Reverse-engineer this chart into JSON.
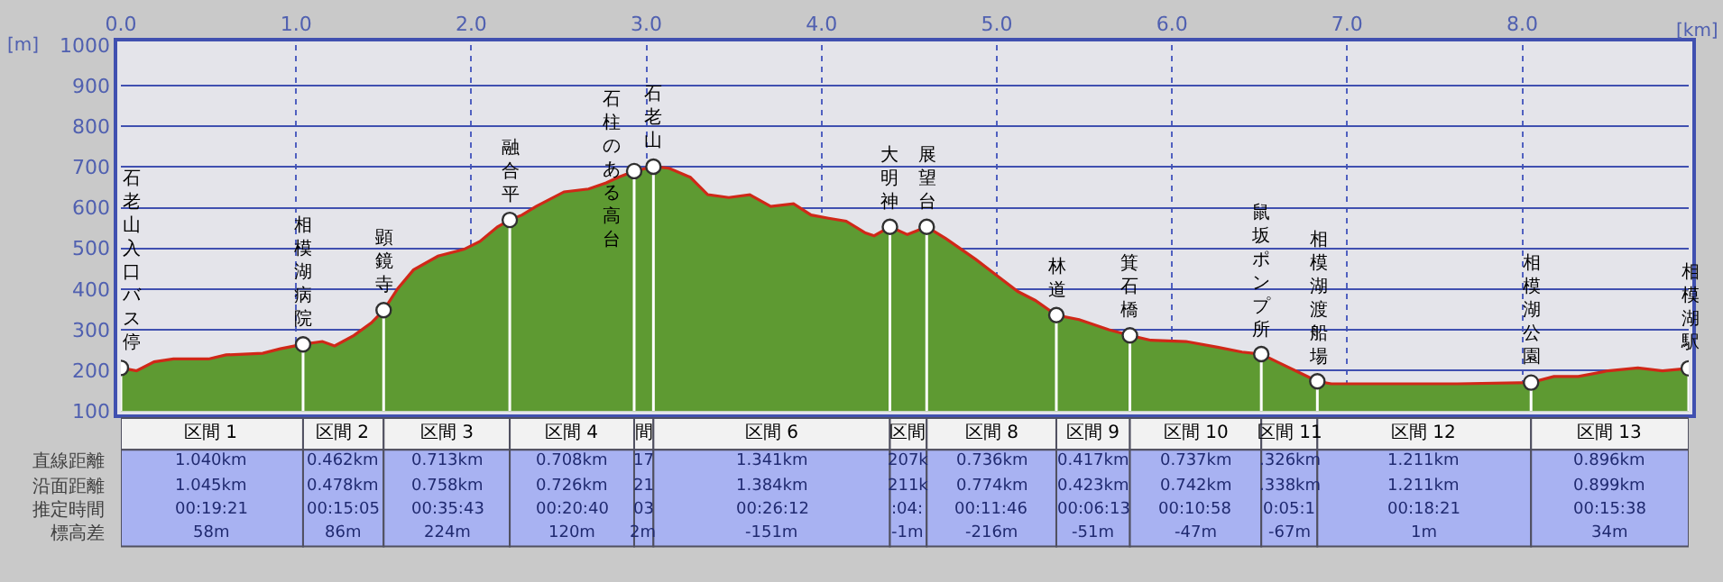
{
  "chart_data": {
    "type": "area",
    "xlabel": "[km]",
    "ylabel": "[m]",
    "xlim": [
      0,
      8.95
    ],
    "ylim": [
      100,
      1000
    ],
    "xticks": [
      {
        "value": 0,
        "label": "0.0"
      },
      {
        "value": 1,
        "label": "1.0"
      },
      {
        "value": 2,
        "label": "2.0"
      },
      {
        "value": 3,
        "label": "3.0"
      },
      {
        "value": 4,
        "label": "4.0"
      },
      {
        "value": 5,
        "label": "5.0"
      },
      {
        "value": 6,
        "label": "6.0"
      },
      {
        "value": 7,
        "label": "7.0"
      },
      {
        "value": 8,
        "label": "8.0"
      }
    ],
    "yticks": [
      100,
      200,
      300,
      400,
      500,
      600,
      700,
      800,
      900,
      1000
    ],
    "grid": true,
    "legend": false,
    "series": [
      {
        "color": "#5e9a32",
        "x": [
          0,
          0.09,
          0.19,
          0.3,
          0.5,
          0.6,
          0.81,
          0.91,
          1.04,
          1.15,
          1.22,
          1.33,
          1.43,
          1.5,
          1.58,
          1.67,
          1.81,
          1.96,
          2.05,
          2.15,
          2.22,
          2.29,
          2.37,
          2.53,
          2.67,
          2.77,
          2.84,
          2.93,
          3.04,
          3.13,
          3.25,
          3.35,
          3.47,
          3.59,
          3.71,
          3.84,
          3.94,
          4.04,
          4.14,
          4.25,
          4.3,
          4.39,
          4.49,
          4.6,
          4.71,
          4.88,
          5.01,
          5.12,
          5.22,
          5.34,
          5.47,
          5.64,
          5.76,
          5.88,
          6.08,
          6.26,
          6.4,
          6.51,
          6.6,
          6.74,
          6.83,
          6.91,
          7.63,
          8.05,
          8.18,
          8.32,
          8.49,
          8.66,
          8.8,
          8.95
        ],
        "values": [
          206,
          199,
          221,
          228,
          228,
          238,
          242,
          253,
          264,
          271,
          260,
          286,
          317,
          348,
          401,
          447,
          481,
          498,
          517,
          553,
          570,
          582,
          603,
          639,
          646,
          661,
          675,
          690,
          701,
          697,
          675,
          632,
          625,
          632,
          603,
          610,
          582,
          574,
          567,
          538,
          531,
          553,
          534,
          553,
          524,
          473,
          430,
          394,
          372,
          336,
          325,
          300,
          286,
          274,
          271,
          257,
          245,
          240,
          221,
          192,
          173,
          167,
          167,
          170,
          185,
          185,
          199,
          206,
          199,
          205
        ]
      },
      {
        "type": "line",
        "color": "#d02818",
        "x": [
          0,
          0.09,
          0.19,
          0.3,
          0.5,
          0.6,
          0.81,
          0.91,
          1.04,
          1.15,
          1.22,
          1.33,
          1.43,
          1.5,
          1.58,
          1.67,
          1.81,
          1.96,
          2.05,
          2.15,
          2.22,
          2.29,
          2.37,
          2.53,
          2.67,
          2.77,
          2.84,
          2.93,
          3.04,
          3.13,
          3.25,
          3.35,
          3.47,
          3.59,
          3.71,
          3.84,
          3.94,
          4.04,
          4.14,
          4.25,
          4.3,
          4.39,
          4.49,
          4.6,
          4.71,
          4.88,
          5.01,
          5.12,
          5.22,
          5.34,
          5.47,
          5.64,
          5.76,
          5.88,
          6.08,
          6.26,
          6.4,
          6.51,
          6.6,
          6.74,
          6.83,
          6.91,
          7.63,
          8.05,
          8.18,
          8.32,
          8.49,
          8.66,
          8.8,
          8.95
        ],
        "values": [
          206,
          199,
          221,
          228,
          228,
          238,
          242,
          253,
          264,
          271,
          260,
          286,
          317,
          348,
          401,
          447,
          481,
          498,
          517,
          553,
          570,
          582,
          603,
          639,
          646,
          661,
          675,
          690,
          701,
          697,
          675,
          632,
          625,
          632,
          603,
          610,
          582,
          574,
          567,
          538,
          531,
          553,
          534,
          553,
          524,
          473,
          430,
          394,
          372,
          336,
          325,
          300,
          286,
          274,
          271,
          257,
          245,
          240,
          221,
          192,
          173,
          167,
          167,
          170,
          185,
          185,
          199,
          206,
          199,
          205
        ]
      },
      {
        "type": "lollipop",
        "color": "#ffffff",
        "marker": "circle",
        "x": [
          0,
          1.04,
          1.5,
          2.22,
          2.93,
          3.04,
          4.39,
          4.6,
          5.34,
          5.76,
          6.51,
          6.83,
          8.05,
          8.95
        ],
        "values": [
          206,
          264,
          348,
          570,
          690,
          701,
          553,
          553,
          336,
          286,
          240,
          173,
          170,
          205
        ]
      }
    ],
    "annotations": [
      {
        "text": "石老山入口バス停",
        "x": 0,
        "y": 206
      },
      {
        "text": "相模湖病院",
        "x": 1.04,
        "y": 264
      },
      {
        "text": "顕鏡寺",
        "x": 1.5,
        "y": 348
      },
      {
        "text": "融合平",
        "x": 2.22,
        "y": 570
      },
      {
        "text": "石柱のある高台",
        "x": 2.93,
        "y": 690
      },
      {
        "text": "石老山",
        "x": 3.04,
        "y": 701
      },
      {
        "text": "大明神",
        "x": 4.39,
        "y": 553
      },
      {
        "text": "展望台",
        "x": 4.6,
        "y": 553
      },
      {
        "text": "林道",
        "x": 5.34,
        "y": 336
      },
      {
        "text": "箕石橋",
        "x": 5.76,
        "y": 286
      },
      {
        "text": "鼠坂ポンプ所",
        "x": 6.51,
        "y": 240
      },
      {
        "text": "相模湖渡船場",
        "x": 6.83,
        "y": 173
      },
      {
        "text": "相模湖公園",
        "x": 8.05,
        "y": 170
      },
      {
        "text": "相模湖駅",
        "x": 8.95,
        "y": 205
      },
      "直線距離",
      "沿面距離",
      "推定時間",
      "標高差",
      "区間 1",
      "1.040km",
      "1.045km",
      "00:19:21",
      "58m",
      "区間 2",
      "0.462km",
      "0.478km",
      "00:15:05",
      "86m",
      "区間 3",
      "0.713km",
      "0.758km",
      "00:35:43",
      "224m",
      "区間 4",
      "0.708km",
      "0.726km",
      "00:20:40",
      "120m",
      "間",
      "17",
      "21",
      "03",
      "2m",
      "区間 6",
      "1.341km",
      "1.384km",
      "00:26:12",
      "-151m",
      "区間",
      "207k",
      "211k",
      ":04:",
      "-1m",
      "区間 8",
      "0.736km",
      "0.774km",
      "00:11:46",
      "-216m",
      "区間 9",
      "0.417km",
      "0.423km",
      "00:06:13",
      "-51m",
      "区間 10",
      "0.737km",
      "0.742km",
      "00:10:58",
      "-47m",
      "区間 11",
      ".326km",
      ".338km",
      "0:05:1",
      "-67m",
      "区間 12",
      "1.211km",
      "1.211km",
      "00:18:21",
      "1m",
      "区間 13",
      "0.896km",
      "0.899km",
      "00:15:38",
      "34m"
    ]
  }
}
